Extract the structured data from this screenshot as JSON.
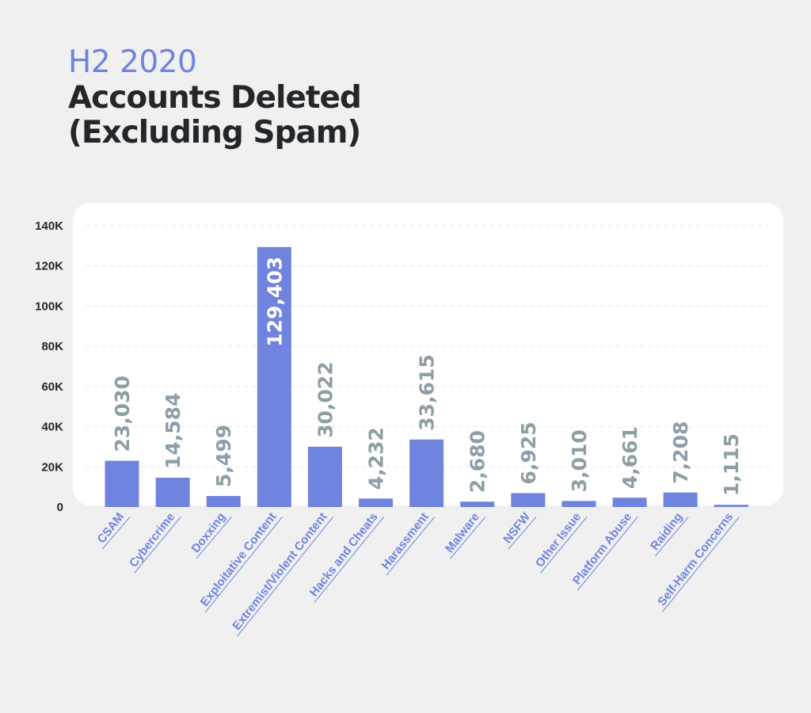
{
  "header": {
    "subtitle": "H2 2020",
    "title_line1": "Accounts Deleted",
    "title_line2": "(Excluding Spam)"
  },
  "chart_data": {
    "type": "bar",
    "title": "Accounts Deleted (Excluding Spam)",
    "subtitle": "H2 2020",
    "xlabel": "",
    "ylabel": "",
    "ylim": [
      0,
      140000
    ],
    "grid": true,
    "yticks": [
      {
        "value": 0,
        "label": "0"
      },
      {
        "value": 20000,
        "label": "20K"
      },
      {
        "value": 40000,
        "label": "40K"
      },
      {
        "value": 60000,
        "label": "60K"
      },
      {
        "value": 80000,
        "label": "80K"
      },
      {
        "value": 100000,
        "label": "100K"
      },
      {
        "value": 120000,
        "label": "120K"
      },
      {
        "value": 140000,
        "label": "140K"
      }
    ],
    "categories": [
      "CSAM",
      "Cybercrime",
      "Doxxing",
      "Exploitative Content",
      "Extremist/Violent Content",
      "Hacks and Cheats",
      "Harassment",
      "Malware",
      "NSFW",
      "Other Issue",
      "Platform Abuse",
      "Raiding",
      "Self-Harm Concerns"
    ],
    "values": [
      23030,
      14584,
      5499,
      129403,
      30022,
      4232,
      33615,
      2680,
      6925,
      3010,
      4661,
      7208,
      1115
    ],
    "value_labels": [
      "23,030",
      "14,584",
      "5,499",
      "129,403",
      "30,022",
      "4,232",
      "33,615",
      "2,680",
      "6,925",
      "3,010",
      "4,661",
      "7,208",
      "1,115"
    ],
    "colors": {
      "bar": "#6f84de",
      "value_label": "#8d9ea6",
      "value_label_inside": "#ffffff",
      "axis_label": "#6f84de",
      "tick_label": "#23272a",
      "grid": "#e4e6ea"
    }
  }
}
